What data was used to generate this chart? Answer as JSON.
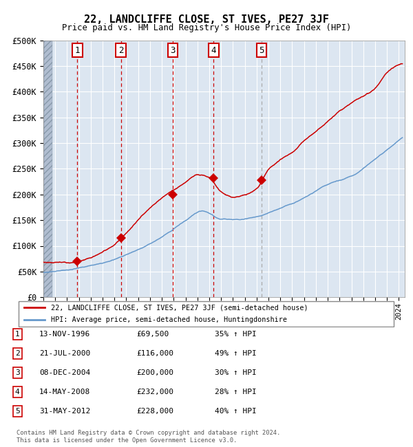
{
  "title": "22, LANDCLIFFE CLOSE, ST IVES, PE27 3JF",
  "subtitle": "Price paid vs. HM Land Registry's House Price Index (HPI)",
  "xlim": [
    1994.0,
    2024.5
  ],
  "ylim": [
    0,
    500000
  ],
  "yticks": [
    0,
    50000,
    100000,
    150000,
    200000,
    250000,
    300000,
    350000,
    400000,
    450000,
    500000
  ],
  "ytick_labels": [
    "£0",
    "£50K",
    "£100K",
    "£150K",
    "£200K",
    "£250K",
    "£300K",
    "£350K",
    "£400K",
    "£450K",
    "£500K"
  ],
  "sale_dates_decimal": [
    1996.87,
    2000.55,
    2004.93,
    2008.37,
    2012.42
  ],
  "sale_prices": [
    69500,
    116000,
    200000,
    232000,
    228000
  ],
  "sale_labels": [
    "1",
    "2",
    "3",
    "4",
    "5"
  ],
  "hpi_line_color": "#6699cc",
  "price_line_color": "#cc0000",
  "sale_marker_color": "#cc0000",
  "sale_vline_colors": [
    "#cc0000",
    "#cc0000",
    "#cc0000",
    "#cc0000",
    "#aaaaaa"
  ],
  "background_color": "#dce6f1",
  "grid_color": "#ffffff",
  "legend_label_red": "22, LANDCLIFFE CLOSE, ST IVES, PE27 3JF (semi-detached house)",
  "legend_label_blue": "HPI: Average price, semi-detached house, Huntingdonshire",
  "hpi_waypoints_x": [
    1994,
    1996,
    1998,
    2000,
    2002,
    2004,
    2006,
    2007.5,
    2009,
    2010,
    2012,
    2014,
    2016,
    2018,
    2020,
    2022,
    2024
  ],
  "hpi_waypoints_y": [
    48000,
    52000,
    60000,
    72000,
    90000,
    115000,
    148000,
    165000,
    150000,
    150000,
    158000,
    175000,
    195000,
    220000,
    235000,
    270000,
    305000
  ],
  "red_waypoints_x": [
    1994,
    1996,
    1997,
    1998,
    1999,
    2000,
    2001,
    2002,
    2003,
    2004,
    2005,
    2006,
    2007,
    2008,
    2009,
    2010,
    2011,
    2012,
    2013,
    2014,
    2015,
    2016,
    2017,
    2018,
    2019,
    2020,
    2021,
    2022,
    2023,
    2024
  ],
  "red_waypoints_y": [
    68000,
    68000,
    70000,
    76000,
    88000,
    102000,
    122000,
    148000,
    172000,
    192000,
    208000,
    222000,
    237000,
    232000,
    205000,
    196000,
    202000,
    213000,
    250000,
    268000,
    282000,
    305000,
    325000,
    342000,
    362000,
    378000,
    392000,
    408000,
    438000,
    455000
  ],
  "table_entries": [
    {
      "num": "1",
      "date": "13-NOV-1996",
      "price": "£69,500",
      "hpi": "35% ↑ HPI"
    },
    {
      "num": "2",
      "date": "21-JUL-2000",
      "price": "£116,000",
      "hpi": "49% ↑ HPI"
    },
    {
      "num": "3",
      "date": "08-DEC-2004",
      "price": "£200,000",
      "hpi": "30% ↑ HPI"
    },
    {
      "num": "4",
      "date": "14-MAY-2008",
      "price": "£232,000",
      "hpi": "28% ↑ HPI"
    },
    {
      "num": "5",
      "date": "31-MAY-2012",
      "price": "£228,000",
      "hpi": "40% ↑ HPI"
    }
  ],
  "footer": "Contains HM Land Registry data © Crown copyright and database right 2024.\nThis data is licensed under the Open Government Licence v3.0."
}
